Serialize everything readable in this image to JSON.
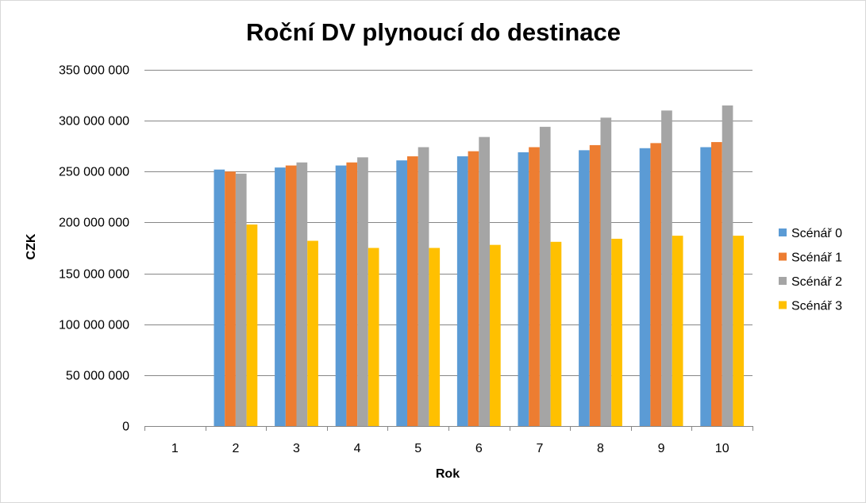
{
  "chart_data": {
    "type": "bar",
    "title": "Roční DV plynoucí do destinace",
    "xlabel": "Rok",
    "ylabel": "CZK",
    "categories": [
      "1",
      "2",
      "3",
      "4",
      "5",
      "6",
      "7",
      "8",
      "9",
      "10"
    ],
    "ylim": [
      0,
      350000000
    ],
    "yticks": [
      0,
      50000000,
      100000000,
      150000000,
      200000000,
      250000000,
      300000000,
      350000000
    ],
    "ytick_labels": [
      "0",
      "50 000 000",
      "100 000 000",
      "150 000 000",
      "200 000 000",
      "250 000 000",
      "300 000 000",
      "350 000 000"
    ],
    "grid": true,
    "legend_position": "right",
    "series": [
      {
        "name": "Scénář 0",
        "color": "#5B9BD5",
        "values": [
          null,
          252000000,
          254000000,
          256000000,
          261000000,
          265000000,
          269000000,
          271000000,
          273000000,
          274000000
        ]
      },
      {
        "name": "Scénář 1",
        "color": "#ED7D31",
        "values": [
          null,
          250000000,
          256000000,
          259000000,
          265000000,
          270000000,
          274000000,
          276000000,
          278000000,
          279000000
        ]
      },
      {
        "name": "Scénář 2",
        "color": "#A5A5A5",
        "values": [
          null,
          248000000,
          259000000,
          264000000,
          274000000,
          284000000,
          294000000,
          303000000,
          310000000,
          315000000
        ]
      },
      {
        "name": "Scénář 3",
        "color": "#FFC000",
        "values": [
          null,
          198000000,
          182000000,
          175000000,
          175000000,
          178000000,
          181000000,
          184000000,
          187000000,
          187000000
        ]
      }
    ]
  }
}
